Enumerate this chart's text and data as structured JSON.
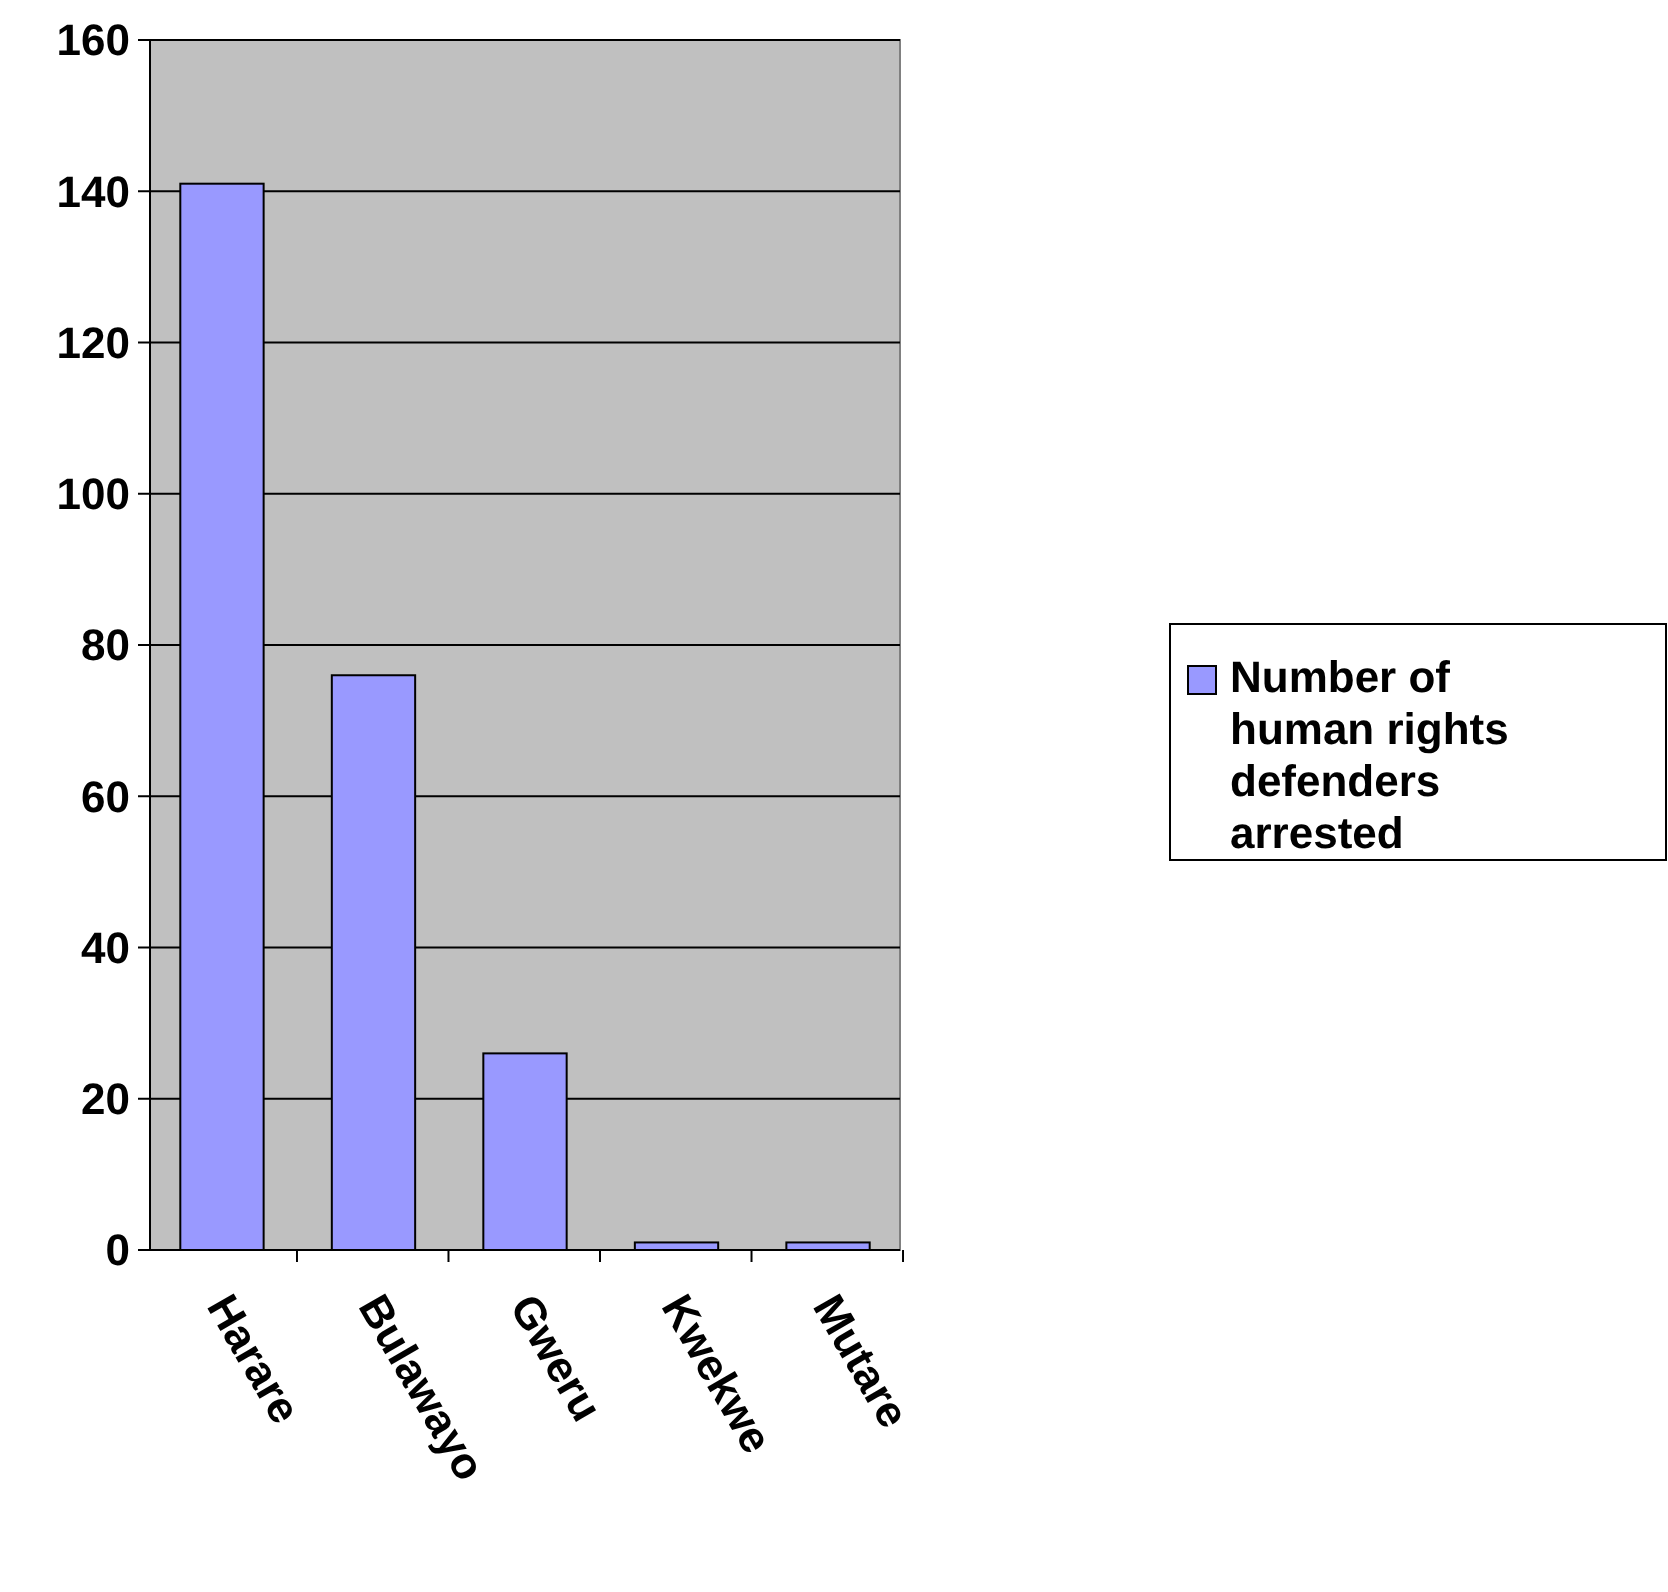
{
  "chart_data": {
    "type": "bar",
    "categories": [
      "Harare",
      "Bulawayo",
      "Gweru",
      "Kwekwe",
      "Mutare"
    ],
    "series": [
      {
        "name": "Number of human rights defenders arrested",
        "color": "#9999ff",
        "values": [
          141,
          76,
          26,
          1,
          1
        ]
      }
    ],
    "ylim": [
      0,
      160
    ],
    "yticks": [
      0,
      20,
      40,
      60,
      80,
      100,
      120,
      140,
      160
    ],
    "grid": "y",
    "legend": "right"
  }
}
